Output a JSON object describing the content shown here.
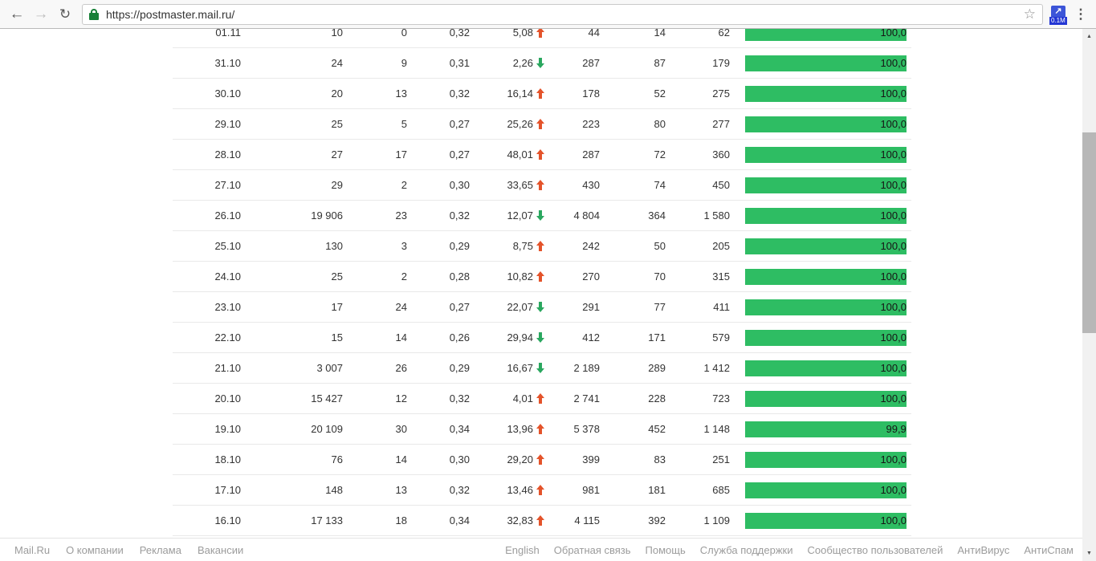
{
  "browser": {
    "url": "https://postmaster.mail.ru/",
    "extension_badge": "0.1M"
  },
  "colors": {
    "bar_green": "#2ebd63",
    "trend_up": "#e4532a",
    "trend_down": "#2aa75f",
    "lock_green": "#188038"
  },
  "table": {
    "rows": [
      {
        "date": "01.11",
        "v1": "10",
        "v2": "0",
        "v3": "0,32",
        "pct": "5,08",
        "trend": "up",
        "v4": "44",
        "v5": "14",
        "v6": "62",
        "bar_label": "100,0",
        "bar_value": 100.0
      },
      {
        "date": "31.10",
        "v1": "24",
        "v2": "9",
        "v3": "0,31",
        "pct": "2,26",
        "trend": "down",
        "v4": "287",
        "v5": "87",
        "v6": "179",
        "bar_label": "100,0",
        "bar_value": 100.0
      },
      {
        "date": "30.10",
        "v1": "20",
        "v2": "13",
        "v3": "0,32",
        "pct": "16,14",
        "trend": "up",
        "v4": "178",
        "v5": "52",
        "v6": "275",
        "bar_label": "100,0",
        "bar_value": 100.0
      },
      {
        "date": "29.10",
        "v1": "25",
        "v2": "5",
        "v3": "0,27",
        "pct": "25,26",
        "trend": "up",
        "v4": "223",
        "v5": "80",
        "v6": "277",
        "bar_label": "100,0",
        "bar_value": 100.0
      },
      {
        "date": "28.10",
        "v1": "27",
        "v2": "17",
        "v3": "0,27",
        "pct": "48,01",
        "trend": "up",
        "v4": "287",
        "v5": "72",
        "v6": "360",
        "bar_label": "100,0",
        "bar_value": 100.0
      },
      {
        "date": "27.10",
        "v1": "29",
        "v2": "2",
        "v3": "0,30",
        "pct": "33,65",
        "trend": "up",
        "v4": "430",
        "v5": "74",
        "v6": "450",
        "bar_label": "100,0",
        "bar_value": 100.0
      },
      {
        "date": "26.10",
        "v1": "19 906",
        "v2": "23",
        "v3": "0,32",
        "pct": "12,07",
        "trend": "down",
        "v4": "4 804",
        "v5": "364",
        "v6": "1 580",
        "bar_label": "100,0",
        "bar_value": 100.0
      },
      {
        "date": "25.10",
        "v1": "130",
        "v2": "3",
        "v3": "0,29",
        "pct": "8,75",
        "trend": "up",
        "v4": "242",
        "v5": "50",
        "v6": "205",
        "bar_label": "100,0",
        "bar_value": 100.0
      },
      {
        "date": "24.10",
        "v1": "25",
        "v2": "2",
        "v3": "0,28",
        "pct": "10,82",
        "trend": "up",
        "v4": "270",
        "v5": "70",
        "v6": "315",
        "bar_label": "100,0",
        "bar_value": 100.0
      },
      {
        "date": "23.10",
        "v1": "17",
        "v2": "24",
        "v3": "0,27",
        "pct": "22,07",
        "trend": "down",
        "v4": "291",
        "v5": "77",
        "v6": "411",
        "bar_label": "100,0",
        "bar_value": 100.0
      },
      {
        "date": "22.10",
        "v1": "15",
        "v2": "14",
        "v3": "0,26",
        "pct": "29,94",
        "trend": "down",
        "v4": "412",
        "v5": "171",
        "v6": "579",
        "bar_label": "100,0",
        "bar_value": 100.0
      },
      {
        "date": "21.10",
        "v1": "3 007",
        "v2": "26",
        "v3": "0,29",
        "pct": "16,67",
        "trend": "down",
        "v4": "2 189",
        "v5": "289",
        "v6": "1 412",
        "bar_label": "100,0",
        "bar_value": 100.0
      },
      {
        "date": "20.10",
        "v1": "15 427",
        "v2": "12",
        "v3": "0,32",
        "pct": "4,01",
        "trend": "up",
        "v4": "2 741",
        "v5": "228",
        "v6": "723",
        "bar_label": "100,0",
        "bar_value": 100.0
      },
      {
        "date": "19.10",
        "v1": "20 109",
        "v2": "30",
        "v3": "0,34",
        "pct": "13,96",
        "trend": "up",
        "v4": "5 378",
        "v5": "452",
        "v6": "1 148",
        "bar_label": "99,9",
        "bar_value": 99.9
      },
      {
        "date": "18.10",
        "v1": "76",
        "v2": "14",
        "v3": "0,30",
        "pct": "29,20",
        "trend": "up",
        "v4": "399",
        "v5": "83",
        "v6": "251",
        "bar_label": "100,0",
        "bar_value": 100.0
      },
      {
        "date": "17.10",
        "v1": "148",
        "v2": "13",
        "v3": "0,32",
        "pct": "13,46",
        "trend": "up",
        "v4": "981",
        "v5": "181",
        "v6": "685",
        "bar_label": "100,0",
        "bar_value": 100.0
      },
      {
        "date": "16.10",
        "v1": "17 133",
        "v2": "18",
        "v3": "0,34",
        "pct": "32,83",
        "trend": "up",
        "v4": "4 115",
        "v5": "392",
        "v6": "1 109",
        "bar_label": "100,0",
        "bar_value": 100.0
      }
    ]
  },
  "footer": {
    "left": [
      "Mail.Ru",
      "О компании",
      "Реклама",
      "Вакансии"
    ],
    "right": [
      "English",
      "Обратная связь",
      "Помощь",
      "Служба поддержки",
      "Сообщество пользователей",
      "АнтиВирус",
      "АнтиСпам"
    ]
  }
}
